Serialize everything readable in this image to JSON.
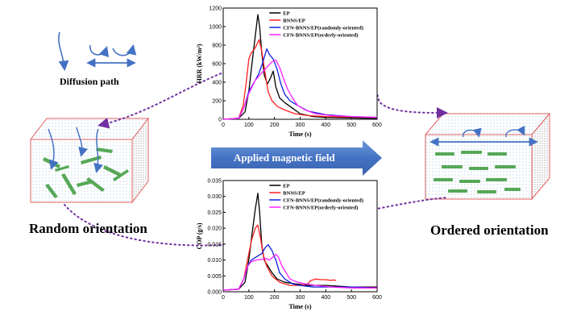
{
  "labels": {
    "diffusion_path": "Diffusion path",
    "applied_field": "Applied magnetic field",
    "random_orientation": "Random orientation",
    "ordered_orientation": "Ordered orientation"
  },
  "colors": {
    "ep": "#000000",
    "bnns_ep": "#ff2020",
    "cfn_random": "#1020e0",
    "cfn_ordered": "#ff20ff",
    "arrow_blue": "#4472c4",
    "dotted_purple": "#7030a0",
    "box_edge": "#e06060",
    "flake_green": "#3a9a3a"
  },
  "chart_data": [
    {
      "type": "line",
      "xlabel": "Time (s)",
      "ylabel": "HRR (kW/m²)",
      "xlim": [
        0,
        600
      ],
      "ylim": [
        0,
        1200
      ],
      "xticks": [
        0,
        100,
        200,
        300,
        400,
        500,
        600
      ],
      "yticks": [
        0,
        200,
        400,
        600,
        800,
        1000,
        1200
      ],
      "legend_position": "top-right",
      "series": [
        {
          "name": "EP",
          "color": "#000000",
          "x": [
            0,
            60,
            85,
            100,
            112,
            125,
            135,
            142,
            150,
            160,
            172,
            185,
            195,
            205,
            220,
            240,
            270,
            300,
            350,
            400,
            500,
            600
          ],
          "y": [
            0,
            10,
            80,
            300,
            600,
            900,
            1130,
            1000,
            720,
            480,
            380,
            450,
            520,
            350,
            230,
            180,
            120,
            60,
            30,
            20,
            15,
            10
          ]
        },
        {
          "name": "BNNS/EP",
          "color": "#ff2020",
          "x": [
            0,
            60,
            78,
            90,
            100,
            110,
            120,
            130,
            140,
            150,
            160,
            175,
            190,
            210,
            240,
            280,
            330,
            400,
            500,
            600
          ],
          "y": [
            0,
            10,
            150,
            400,
            650,
            720,
            750,
            800,
            860,
            740,
            560,
            300,
            200,
            140,
            100,
            60,
            40,
            30,
            25,
            20
          ]
        },
        {
          "name": "CFN-BNNS/EP(randomly-oriented)",
          "color": "#1020e0",
          "x": [
            0,
            60,
            80,
            100,
            125,
            140,
            155,
            170,
            180,
            195,
            210,
            225,
            240,
            260,
            290,
            330,
            400,
            500,
            600
          ],
          "y": [
            0,
            10,
            120,
            300,
            420,
            500,
            620,
            760,
            700,
            650,
            540,
            380,
            270,
            200,
            150,
            90,
            50,
            30,
            20
          ]
        },
        {
          "name": "CFN-BNNS/EP(orderly-oriented)",
          "color": "#ff20ff",
          "x": [
            0,
            60,
            80,
            100,
            125,
            150,
            170,
            190,
            205,
            220,
            235,
            250,
            270,
            290,
            320,
            360,
            420,
            500,
            600
          ],
          "y": [
            0,
            10,
            120,
            280,
            420,
            500,
            560,
            620,
            640,
            560,
            440,
            330,
            230,
            150,
            100,
            60,
            40,
            30,
            20
          ]
        }
      ]
    },
    {
      "type": "line",
      "xlabel": "Time (s)",
      "ylabel": "COP (g/s)",
      "xlim": [
        0,
        600
      ],
      "ylim": [
        0,
        0.035
      ],
      "xticks": [
        0,
        100,
        200,
        300,
        400,
        500,
        600
      ],
      "yticks": [
        0,
        0.005,
        0.01,
        0.015,
        0.02,
        0.025,
        0.03,
        0.035
      ],
      "legend_position": "top-right",
      "series": [
        {
          "name": "EP",
          "color": "#000000",
          "x": [
            0,
            60,
            85,
            100,
            112,
            125,
            135,
            142,
            150,
            160,
            175,
            190,
            210,
            240,
            280,
            330,
            400,
            500,
            600
          ],
          "y": [
            0.0005,
            0.0008,
            0.003,
            0.01,
            0.018,
            0.026,
            0.031,
            0.025,
            0.015,
            0.01,
            0.008,
            0.006,
            0.004,
            0.003,
            0.0025,
            0.002,
            0.002,
            0.0015,
            0.0015
          ]
        },
        {
          "name": "BNNS/EP",
          "color": "#ff2020",
          "x": [
            0,
            60,
            80,
            95,
            110,
            125,
            135,
            145,
            155,
            170,
            190,
            220,
            260,
            300,
            330,
            340,
            360,
            380,
            400,
            420,
            430,
            440
          ],
          "y": [
            0.0005,
            0.0008,
            0.004,
            0.01,
            0.016,
            0.02,
            0.021,
            0.017,
            0.012,
            0.008,
            0.005,
            0.003,
            0.002,
            0.002,
            0.0025,
            0.0035,
            0.004,
            0.0038,
            0.0038,
            0.0036,
            0.0037,
            0.0036
          ]
        },
        {
          "name": "CFN-BNNS/EP(randomly-oriented)",
          "color": "#1020e0",
          "x": [
            0,
            60,
            80,
            95,
            110,
            130,
            150,
            165,
            175,
            190,
            205,
            220,
            240,
            270,
            300,
            350,
            400,
            450,
            500,
            600
          ],
          "y": [
            0.0005,
            0.0008,
            0.004,
            0.008,
            0.01,
            0.011,
            0.012,
            0.014,
            0.0148,
            0.013,
            0.01,
            0.006,
            0.004,
            0.0025,
            0.002,
            0.0015,
            0.0015,
            0.0015,
            0.0015,
            0.0012
          ]
        },
        {
          "name": "CFN-BNNS/EP(orderly-oriented)",
          "color": "#ff20ff",
          "x": [
            0,
            60,
            80,
            95,
            110,
            130,
            150,
            165,
            180,
            195,
            205,
            215,
            230,
            245,
            260,
            290,
            320,
            360,
            420,
            500,
            600
          ],
          "y": [
            0.0005,
            0.0008,
            0.004,
            0.008,
            0.0095,
            0.01,
            0.0102,
            0.0105,
            0.01,
            0.011,
            0.0118,
            0.011,
            0.008,
            0.006,
            0.004,
            0.003,
            0.0025,
            0.002,
            0.0015,
            0.0012,
            0.0012
          ]
        }
      ]
    }
  ]
}
